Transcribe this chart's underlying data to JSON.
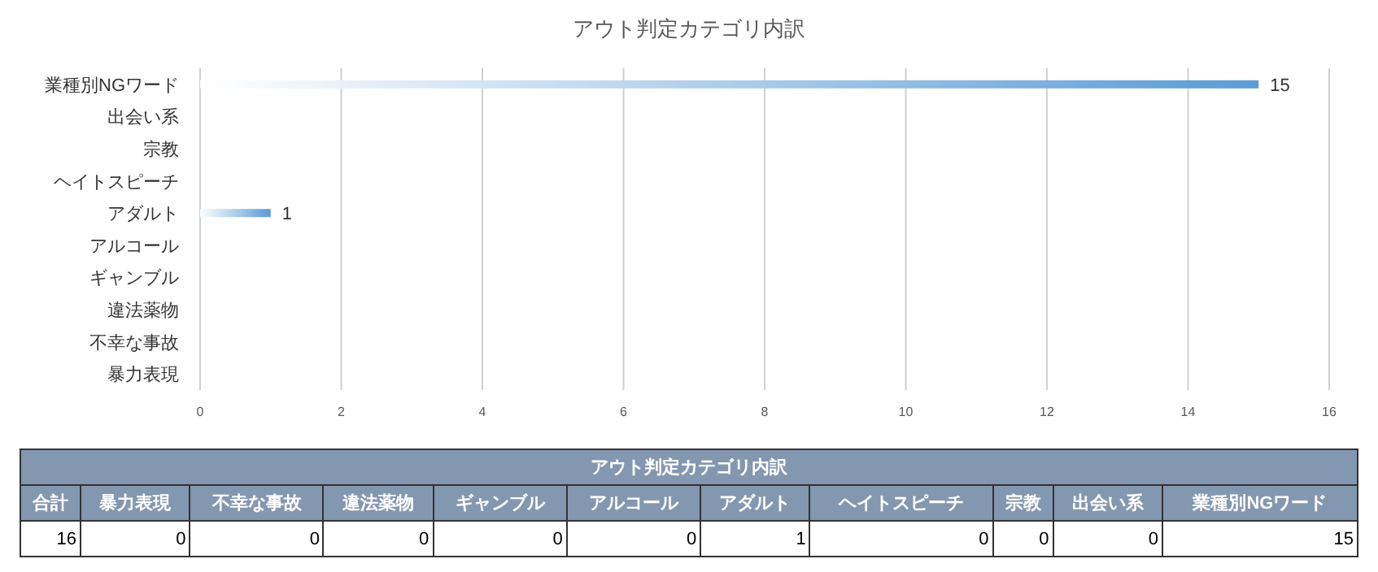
{
  "chart_data": [
    {
      "type": "bar",
      "orientation": "horizontal",
      "title": "アウト判定カテゴリ内訳",
      "categories": [
        "業種別NGワード",
        "出会い系",
        "宗教",
        "ヘイトスピーチ",
        "アダルト",
        "アルコール",
        "ギャンブル",
        "違法薬物",
        "不幸な事故",
        "暴力表現"
      ],
      "values": [
        15,
        0,
        0,
        0,
        1,
        0,
        0,
        0,
        0,
        0
      ],
      "value_labels": [
        "15",
        null,
        null,
        null,
        "1",
        null,
        null,
        null,
        null,
        null
      ],
      "color": "#5b9bd5",
      "xlim": [
        0,
        16
      ],
      "xticks": [
        0,
        2,
        4,
        6,
        8,
        10,
        12,
        14,
        16
      ],
      "grid": "x"
    },
    {
      "type": "other",
      "title": "アウト判定カテゴリ内訳",
      "categories": [
        "合計",
        "暴力表現",
        "不幸な事故",
        "違法薬物",
        "ギャンブル",
        "アルコール",
        "アダルト",
        "ヘイトスピーチ",
        "宗教",
        "出会い系",
        "業種別NGワード"
      ],
      "values": [
        16,
        0,
        0,
        0,
        0,
        0,
        1,
        0,
        0,
        0,
        15
      ],
      "data_labels": true
    }
  ]
}
